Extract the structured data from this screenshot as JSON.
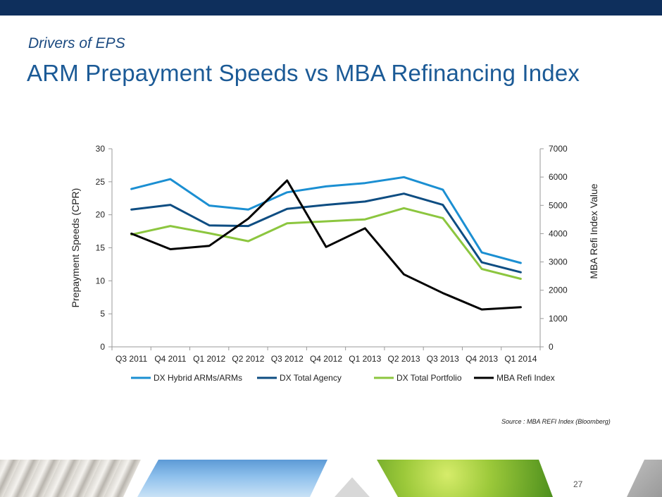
{
  "header": {
    "subtitle": "Drivers of EPS",
    "title": "ARM Prepayment Speeds vs MBA Refinancing Index"
  },
  "chart_data": {
    "type": "line",
    "categories": [
      "Q3 2011",
      "Q4 2011",
      "Q1 2012",
      "Q2 2012",
      "Q3 2012",
      "Q4 2012",
      "Q1 2013",
      "Q2 2013",
      "Q3 2013",
      "Q4 2013",
      "Q1 2014"
    ],
    "series": [
      {
        "name": "DX Hybrid ARMs/ARMs",
        "axis": "left",
        "color": "#1b8fd2",
        "values": [
          23.9,
          25.4,
          21.4,
          20.8,
          23.4,
          24.3,
          24.8,
          25.7,
          23.8,
          14.3,
          12.7
        ]
      },
      {
        "name": "DX Total Agency",
        "axis": "left",
        "color": "#0e4d82",
        "values": [
          20.8,
          21.5,
          18.4,
          18.3,
          20.9,
          21.5,
          22.0,
          23.2,
          21.5,
          12.8,
          11.3
        ]
      },
      {
        "name": "DX Total Portfolio",
        "axis": "left",
        "color": "#8cc63f",
        "values": [
          17.0,
          18.3,
          17.2,
          16.0,
          18.7,
          19.0,
          19.3,
          21.0,
          19.5,
          11.8,
          10.3
        ]
      },
      {
        "name": "MBA Refi Index",
        "axis": "right",
        "color": "#000000",
        "values": [
          4000,
          3450,
          3570,
          4530,
          5880,
          3530,
          4190,
          2560,
          1900,
          1320,
          1400
        ]
      }
    ],
    "y_left": {
      "label": "Prepayment Speeds (CPR)",
      "min": 0,
      "max": 30,
      "ticks": [
        "0",
        "5",
        "10",
        "15",
        "20",
        "25",
        "30"
      ]
    },
    "y_right": {
      "label": "MBA Refi Index Value",
      "min": 0,
      "max": 7000,
      "ticks": [
        "0",
        "1000",
        "2000",
        "3000",
        "4000",
        "5000",
        "6000",
        "7000"
      ]
    },
    "legend_position": "bottom"
  },
  "footer": {
    "source": "Source : MBA REFI Index  (Bloomberg)",
    "page_number": "27"
  }
}
